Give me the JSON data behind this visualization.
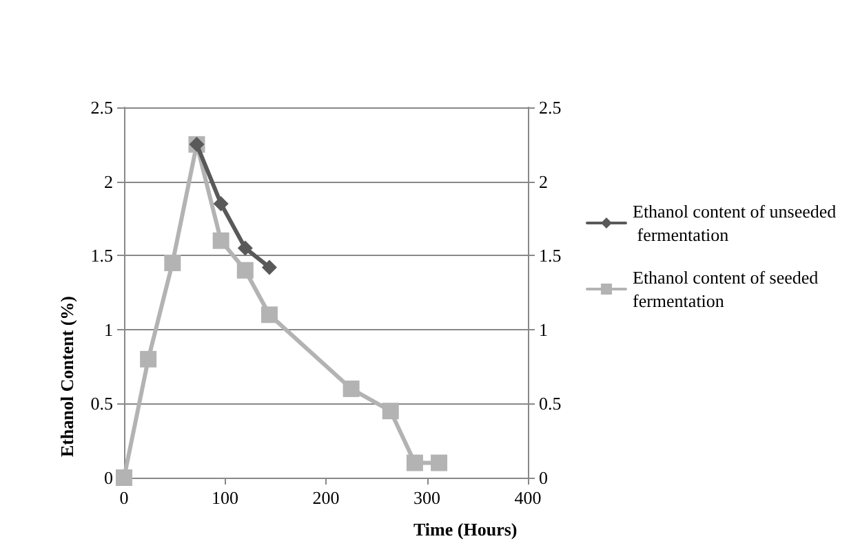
{
  "chart_data": {
    "type": "line",
    "xlabel": "Time (Hours)",
    "ylabel": "Ethanol Content (%)",
    "xlim": [
      0,
      400
    ],
    "xticks": [
      0,
      100,
      200,
      300,
      400
    ],
    "ylim": [
      0,
      2.5
    ],
    "yticks": [
      0,
      0.5,
      1,
      1.5,
      2,
      2.5
    ],
    "y2lim": [
      0,
      2.5
    ],
    "y2ticks": [
      0,
      0.5,
      1,
      1.5,
      2,
      2.5
    ],
    "grid": "y",
    "legend": "right",
    "line_style": "solid",
    "series": [
      {
        "name": "Ethanol content of unseeded fermentation",
        "color": "#595959",
        "marker": "diamond",
        "x": [
          72,
          96,
          120,
          144
        ],
        "values": [
          2.25,
          1.85,
          1.55,
          1.42
        ]
      },
      {
        "name": "Ethanol content of seeded fermentation",
        "color": "#b3b3b3",
        "marker": "square",
        "x": [
          0,
          24,
          48,
          72,
          96,
          120,
          144,
          225,
          264,
          288,
          312
        ],
        "values": [
          0,
          0.8,
          1.45,
          2.25,
          1.6,
          1.4,
          1.1,
          0.6,
          0.45,
          0.1,
          0.1
        ]
      }
    ]
  }
}
